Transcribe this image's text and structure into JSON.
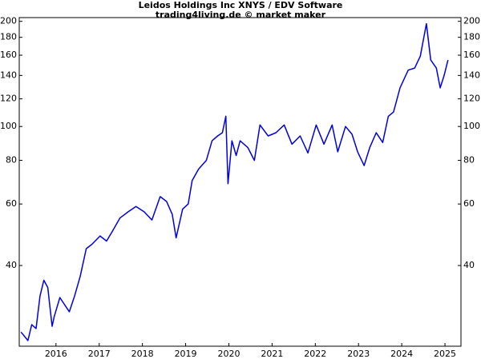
{
  "chart_data": {
    "type": "line",
    "title": "Leidos Holdings Inc XNYS / EDV Software",
    "subtitle": "trading4living.de © market maker",
    "x": [
      2015.19,
      2015.35,
      2015.44,
      2015.54,
      2015.63,
      2015.72,
      2015.81,
      2015.91,
      2015.96,
      2016.09,
      2016.19,
      2016.31,
      2016.43,
      2016.56,
      2016.7,
      2016.83,
      2017.02,
      2017.17,
      2017.3,
      2017.48,
      2017.67,
      2017.85,
      2018.04,
      2018.22,
      2018.41,
      2018.56,
      2018.69,
      2018.78,
      2018.93,
      2019.06,
      2019.15,
      2019.3,
      2019.48,
      2019.61,
      2019.74,
      2019.85,
      2019.93,
      2019.98,
      2020.07,
      2020.17,
      2020.26,
      2020.44,
      2020.59,
      2020.72,
      2020.91,
      2021.09,
      2021.28,
      2021.46,
      2021.65,
      2021.83,
      2022.02,
      2022.2,
      2022.39,
      2022.52,
      2022.7,
      2022.85,
      2022.98,
      2023.13,
      2023.26,
      2023.41,
      2023.56,
      2023.69,
      2023.81,
      2023.96,
      2024.15,
      2024.3,
      2024.43,
      2024.57,
      2024.67,
      2024.8,
      2024.89,
      2024.98,
      2025.07
    ],
    "series": [
      {
        "color": "#0000e0",
        "values": [
          25.8,
          24.4,
          27.1,
          26.4,
          32.7,
          36.3,
          34.6,
          26.8,
          28.6,
          32.4,
          31.0,
          29.5,
          32.7,
          37.2,
          44.7,
          46,
          48.6,
          47,
          50,
          54.7,
          57,
          59,
          57,
          54,
          63,
          61,
          56,
          48,
          58,
          60,
          70,
          75.5,
          80,
          91,
          94,
          96,
          107,
          68.6,
          91,
          82.6,
          91,
          87,
          80,
          101,
          94,
          96,
          101,
          89,
          94,
          84,
          101,
          89,
          101,
          84.6,
          100,
          95,
          84.6,
          77.3,
          87,
          96,
          90,
          107,
          110,
          129,
          145,
          147,
          159,
          197,
          155,
          147,
          129,
          140,
          155
        ]
      }
    ],
    "xlim": [
      2015.15,
      2025.37
    ],
    "xticks": [
      2016,
      2017,
      2018,
      2019,
      2020,
      2021,
      2022,
      2023,
      2024,
      2025
    ],
    "ylim": [
      23.5,
      205
    ],
    "yticks": [
      40,
      60,
      80,
      100,
      120,
      140,
      160,
      180,
      200
    ],
    "log_y": true,
    "grid": false
  }
}
